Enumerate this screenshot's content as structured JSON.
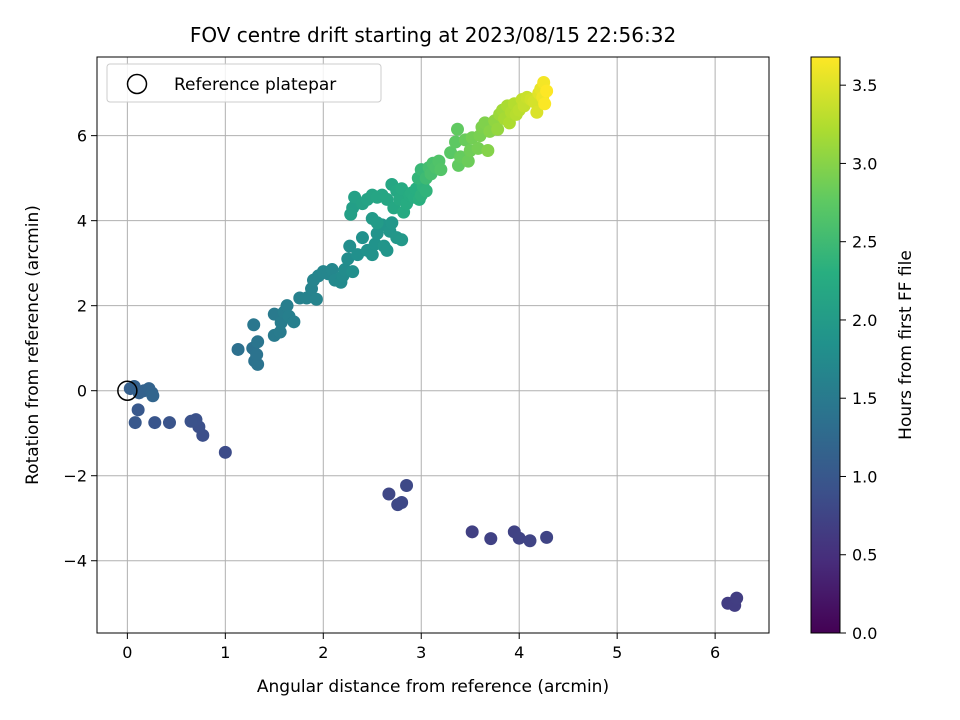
{
  "chart_data": {
    "type": "scatter",
    "title": "FOV centre drift starting at 2023/08/15 22:56:32",
    "xlabel": "Angular distance from reference (arcmin)",
    "ylabel": "Rotation from reference (arcmin)",
    "xlim": [
      -0.31,
      6.55
    ],
    "ylim": [
      -5.7,
      7.85
    ],
    "xticks": [
      0,
      1,
      2,
      3,
      4,
      5,
      6
    ],
    "yticks": [
      -4,
      -2,
      0,
      2,
      4,
      6
    ],
    "grid": true,
    "legend": {
      "position": "top-left",
      "entries": [
        "Reference platepar"
      ]
    },
    "reference_point": {
      "x": 0,
      "y": 0
    },
    "colormap": "viridis",
    "colorbar": {
      "label": "Hours from first FF file",
      "range": [
        0,
        3.68
      ],
      "ticks": [
        0.0,
        0.5,
        1.0,
        1.5,
        2.0,
        2.5,
        3.0,
        3.5
      ]
    },
    "series": [
      {
        "points": [
          {
            "x": 6.13,
            "y": -5.0,
            "c": 0.65
          },
          {
            "x": 6.2,
            "y": -5.05,
            "c": 0.66
          },
          {
            "x": 6.22,
            "y": -4.88,
            "c": 0.67
          },
          {
            "x": 3.52,
            "y": -3.32,
            "c": 0.7
          },
          {
            "x": 3.71,
            "y": -3.48,
            "c": 0.71
          },
          {
            "x": 3.95,
            "y": -3.32,
            "c": 0.72
          },
          {
            "x": 4.0,
            "y": -3.47,
            "c": 0.73
          },
          {
            "x": 4.11,
            "y": -3.53,
            "c": 0.74
          },
          {
            "x": 4.28,
            "y": -3.45,
            "c": 0.75
          },
          {
            "x": 2.67,
            "y": -2.43,
            "c": 0.78
          },
          {
            "x": 2.76,
            "y": -2.68,
            "c": 0.79
          },
          {
            "x": 2.8,
            "y": -2.63,
            "c": 0.8
          },
          {
            "x": 2.85,
            "y": -2.23,
            "c": 0.81
          },
          {
            "x": 1.0,
            "y": -1.45,
            "c": 0.85
          },
          {
            "x": 0.77,
            "y": -1.05,
            "c": 0.88
          },
          {
            "x": 0.73,
            "y": -0.85,
            "c": 0.9
          },
          {
            "x": 0.7,
            "y": -0.68,
            "c": 0.91
          },
          {
            "x": 0.65,
            "y": -0.72,
            "c": 0.92
          },
          {
            "x": 0.43,
            "y": -0.75,
            "c": 0.95
          },
          {
            "x": 0.28,
            "y": -0.75,
            "c": 0.97
          },
          {
            "x": 0.11,
            "y": -0.45,
            "c": 1.0
          },
          {
            "x": 0.08,
            "y": -0.75,
            "c": 1.0
          },
          {
            "x": 0.03,
            "y": 0.05,
            "c": 1.1
          },
          {
            "x": 0.07,
            "y": 0.1,
            "c": 1.12
          },
          {
            "x": 0.12,
            "y": -0.05,
            "c": 1.14
          },
          {
            "x": 0.17,
            "y": 0.0,
            "c": 1.15
          },
          {
            "x": 0.22,
            "y": 0.05,
            "c": 1.17
          },
          {
            "x": 0.25,
            "y": -0.05,
            "c": 1.18
          },
          {
            "x": 0.26,
            "y": -0.12,
            "c": 1.19
          },
          {
            "x": 1.13,
            "y": 0.97,
            "c": 1.35
          },
          {
            "x": 1.28,
            "y": 1.0,
            "c": 1.37
          },
          {
            "x": 1.3,
            "y": 0.7,
            "c": 1.38
          },
          {
            "x": 1.33,
            "y": 0.62,
            "c": 1.4
          },
          {
            "x": 1.32,
            "y": 0.85,
            "c": 1.4
          },
          {
            "x": 1.33,
            "y": 1.15,
            "c": 1.42
          },
          {
            "x": 1.29,
            "y": 1.55,
            "c": 1.45
          },
          {
            "x": 1.5,
            "y": 1.3,
            "c": 1.5
          },
          {
            "x": 1.5,
            "y": 1.8,
            "c": 1.5
          },
          {
            "x": 1.56,
            "y": 1.38,
            "c": 1.52
          },
          {
            "x": 1.57,
            "y": 1.6,
            "c": 1.53
          },
          {
            "x": 1.6,
            "y": 1.85,
            "c": 1.55
          },
          {
            "x": 1.63,
            "y": 2.0,
            "c": 1.56
          },
          {
            "x": 1.65,
            "y": 1.75,
            "c": 1.57
          },
          {
            "x": 1.7,
            "y": 1.62,
            "c": 1.58
          },
          {
            "x": 1.76,
            "y": 2.18,
            "c": 1.6
          },
          {
            "x": 1.83,
            "y": 2.18,
            "c": 1.62
          },
          {
            "x": 1.88,
            "y": 2.4,
            "c": 1.63
          },
          {
            "x": 1.9,
            "y": 2.6,
            "c": 1.64
          },
          {
            "x": 1.93,
            "y": 2.15,
            "c": 1.65
          },
          {
            "x": 1.95,
            "y": 2.7,
            "c": 1.66
          },
          {
            "x": 2.0,
            "y": 2.8,
            "c": 1.67
          },
          {
            "x": 2.05,
            "y": 2.75,
            "c": 1.68
          },
          {
            "x": 2.09,
            "y": 2.85,
            "c": 1.69
          },
          {
            "x": 2.12,
            "y": 2.6,
            "c": 1.72
          },
          {
            "x": 2.18,
            "y": 2.55,
            "c": 1.74
          },
          {
            "x": 2.2,
            "y": 2.7,
            "c": 1.75
          },
          {
            "x": 2.22,
            "y": 2.85,
            "c": 1.76
          },
          {
            "x": 2.25,
            "y": 3.1,
            "c": 1.78
          },
          {
            "x": 2.27,
            "y": 3.4,
            "c": 1.8
          },
          {
            "x": 2.3,
            "y": 2.8,
            "c": 1.81
          },
          {
            "x": 2.35,
            "y": 3.2,
            "c": 1.82
          },
          {
            "x": 2.4,
            "y": 3.6,
            "c": 1.84
          },
          {
            "x": 2.45,
            "y": 3.3,
            "c": 1.85
          },
          {
            "x": 2.5,
            "y": 3.2,
            "c": 1.86
          },
          {
            "x": 2.53,
            "y": 3.45,
            "c": 1.87
          },
          {
            "x": 2.55,
            "y": 3.7,
            "c": 1.88
          },
          {
            "x": 2.6,
            "y": 3.9,
            "c": 1.9
          },
          {
            "x": 2.62,
            "y": 3.4,
            "c": 1.9
          },
          {
            "x": 2.65,
            "y": 3.3,
            "c": 1.91
          },
          {
            "x": 2.68,
            "y": 3.75,
            "c": 1.92
          },
          {
            "x": 2.7,
            "y": 3.95,
            "c": 1.93
          },
          {
            "x": 2.75,
            "y": 3.6,
            "c": 1.94
          },
          {
            "x": 2.8,
            "y": 3.55,
            "c": 1.95
          },
          {
            "x": 2.5,
            "y": 4.05,
            "c": 1.98
          },
          {
            "x": 2.55,
            "y": 3.95,
            "c": 2.0
          },
          {
            "x": 2.3,
            "y": 4.3,
            "c": 2.05
          },
          {
            "x": 2.28,
            "y": 4.15,
            "c": 2.06
          },
          {
            "x": 2.32,
            "y": 4.55,
            "c": 2.08
          },
          {
            "x": 2.4,
            "y": 4.4,
            "c": 2.1
          },
          {
            "x": 2.45,
            "y": 4.5,
            "c": 2.12
          },
          {
            "x": 2.5,
            "y": 4.6,
            "c": 2.14
          },
          {
            "x": 2.55,
            "y": 4.55,
            "c": 2.15
          },
          {
            "x": 2.6,
            "y": 4.6,
            "c": 2.16
          },
          {
            "x": 2.65,
            "y": 4.5,
            "c": 2.17
          },
          {
            "x": 2.7,
            "y": 4.85,
            "c": 2.18
          },
          {
            "x": 2.72,
            "y": 4.3,
            "c": 2.19
          },
          {
            "x": 2.75,
            "y": 4.7,
            "c": 2.2
          },
          {
            "x": 2.78,
            "y": 4.5,
            "c": 2.22
          },
          {
            "x": 2.8,
            "y": 4.75,
            "c": 2.23
          },
          {
            "x": 2.82,
            "y": 4.2,
            "c": 2.24
          },
          {
            "x": 2.85,
            "y": 4.4,
            "c": 2.25
          },
          {
            "x": 2.88,
            "y": 4.6,
            "c": 2.26
          },
          {
            "x": 2.9,
            "y": 4.65,
            "c": 2.27
          },
          {
            "x": 2.93,
            "y": 4.55,
            "c": 2.28
          },
          {
            "x": 2.95,
            "y": 4.75,
            "c": 2.3
          },
          {
            "x": 2.98,
            "y": 4.5,
            "c": 2.32
          },
          {
            "x": 3.0,
            "y": 4.6,
            "c": 2.34
          },
          {
            "x": 3.02,
            "y": 4.8,
            "c": 2.36
          },
          {
            "x": 3.05,
            "y": 4.7,
            "c": 2.38
          },
          {
            "x": 2.97,
            "y": 5.0,
            "c": 2.4
          },
          {
            "x": 3.0,
            "y": 5.2,
            "c": 2.45
          },
          {
            "x": 3.05,
            "y": 5.0,
            "c": 2.5
          },
          {
            "x": 3.08,
            "y": 5.25,
            "c": 2.55
          },
          {
            "x": 3.1,
            "y": 5.1,
            "c": 2.58
          },
          {
            "x": 3.12,
            "y": 5.35,
            "c": 2.6
          },
          {
            "x": 3.15,
            "y": 5.25,
            "c": 2.62
          },
          {
            "x": 3.18,
            "y": 5.4,
            "c": 2.65
          },
          {
            "x": 3.2,
            "y": 5.2,
            "c": 2.67
          },
          {
            "x": 3.3,
            "y": 5.6,
            "c": 2.72
          },
          {
            "x": 3.35,
            "y": 5.85,
            "c": 2.75
          },
          {
            "x": 3.37,
            "y": 6.15,
            "c": 2.77
          },
          {
            "x": 3.38,
            "y": 5.3,
            "c": 2.78
          },
          {
            "x": 3.4,
            "y": 5.5,
            "c": 2.8
          },
          {
            "x": 3.45,
            "y": 5.9,
            "c": 2.82
          },
          {
            "x": 3.48,
            "y": 5.4,
            "c": 2.84
          },
          {
            "x": 3.5,
            "y": 5.65,
            "c": 2.86
          },
          {
            "x": 3.52,
            "y": 5.95,
            "c": 2.88
          },
          {
            "x": 3.58,
            "y": 5.7,
            "c": 2.9
          },
          {
            "x": 3.6,
            "y": 6.0,
            "c": 2.92
          },
          {
            "x": 3.62,
            "y": 6.2,
            "c": 2.94
          },
          {
            "x": 3.65,
            "y": 6.3,
            "c": 2.96
          },
          {
            "x": 3.68,
            "y": 5.65,
            "c": 2.98
          },
          {
            "x": 3.7,
            "y": 6.1,
            "c": 3.0
          },
          {
            "x": 3.75,
            "y": 6.35,
            "c": 3.05
          },
          {
            "x": 3.78,
            "y": 6.15,
            "c": 3.08
          },
          {
            "x": 3.8,
            "y": 6.5,
            "c": 3.12
          },
          {
            "x": 3.83,
            "y": 6.6,
            "c": 3.15
          },
          {
            "x": 3.85,
            "y": 6.4,
            "c": 3.18
          },
          {
            "x": 3.88,
            "y": 6.7,
            "c": 3.2
          },
          {
            "x": 3.9,
            "y": 6.3,
            "c": 3.22
          },
          {
            "x": 3.92,
            "y": 6.55,
            "c": 3.24
          },
          {
            "x": 3.95,
            "y": 6.75,
            "c": 3.26
          },
          {
            "x": 3.97,
            "y": 6.5,
            "c": 3.28
          },
          {
            "x": 4.0,
            "y": 6.6,
            "c": 3.3
          },
          {
            "x": 4.03,
            "y": 6.85,
            "c": 3.34
          },
          {
            "x": 4.05,
            "y": 6.7,
            "c": 3.36
          },
          {
            "x": 4.08,
            "y": 6.9,
            "c": 3.38
          },
          {
            "x": 4.12,
            "y": 6.85,
            "c": 3.42
          },
          {
            "x": 4.15,
            "y": 6.8,
            "c": 3.45
          },
          {
            "x": 4.18,
            "y": 6.55,
            "c": 3.48
          },
          {
            "x": 4.2,
            "y": 7.0,
            "c": 3.52
          },
          {
            "x": 4.22,
            "y": 7.1,
            "c": 3.56
          },
          {
            "x": 4.24,
            "y": 6.9,
            "c": 3.6
          },
          {
            "x": 4.25,
            "y": 7.25,
            "c": 3.63
          },
          {
            "x": 4.26,
            "y": 6.75,
            "c": 3.66
          },
          {
            "x": 4.28,
            "y": 7.05,
            "c": 3.68
          }
        ]
      }
    ]
  }
}
